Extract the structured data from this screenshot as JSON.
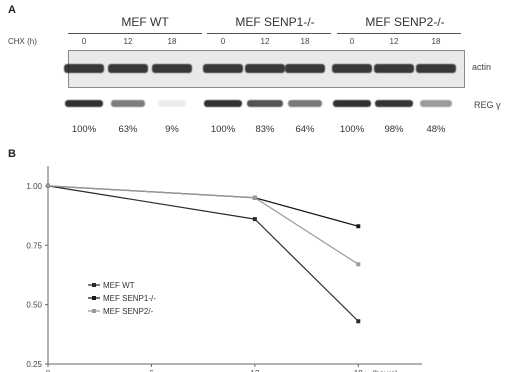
{
  "panel_a": {
    "letter": "A",
    "groups": [
      {
        "label": "MEF WT"
      },
      {
        "label": "MEF SENP1-/-"
      },
      {
        "label": "MEF SENP2-/-"
      }
    ],
    "condition_label": "CHX (h)",
    "lanes": [
      "0",
      "12",
      "18",
      "0",
      "12",
      "18",
      "0",
      "12",
      "18"
    ],
    "row_labels": {
      "top": "actin",
      "bottom": "REG γ"
    },
    "actin_intensity": [
      1,
      1,
      1,
      1,
      1,
      1,
      1,
      1,
      1
    ],
    "reg_intensity": [
      1.0,
      0.63,
      0.09,
      1.0,
      0.83,
      0.64,
      1.0,
      0.98,
      0.48
    ],
    "percentages": [
      "100%",
      "63%",
      "9%",
      "100%",
      "83%",
      "64%",
      "100%",
      "98%",
      "48%"
    ]
  },
  "panel_b": {
    "letter": "B"
  },
  "chart_data": {
    "type": "line",
    "x": [
      0,
      12,
      18
    ],
    "xticks": [
      "0",
      "6",
      "12",
      "18"
    ],
    "xtick_values": [
      0,
      6,
      12,
      18
    ],
    "x_unit_label": "(hours)",
    "yticks": [
      "0.25",
      "0.50",
      "0.75",
      "1.00"
    ],
    "ytick_values": [
      0.25,
      0.5,
      0.75,
      1.0
    ],
    "xlim": [
      0,
      21
    ],
    "ylim": [
      0.25,
      1.05
    ],
    "legend_position": "lower-left",
    "series": [
      {
        "name": "MEF WT",
        "values": [
          1.0,
          0.86,
          0.43
        ],
        "color": "#2a2a2a"
      },
      {
        "name": "MEF SENP1-/-",
        "values": [
          1.0,
          0.95,
          0.83
        ],
        "color": "#1a1a1a"
      },
      {
        "name": "MEF SENP2/-",
        "values": [
          1.0,
          0.95,
          0.67
        ],
        "color": "#9a9a9a"
      }
    ]
  }
}
